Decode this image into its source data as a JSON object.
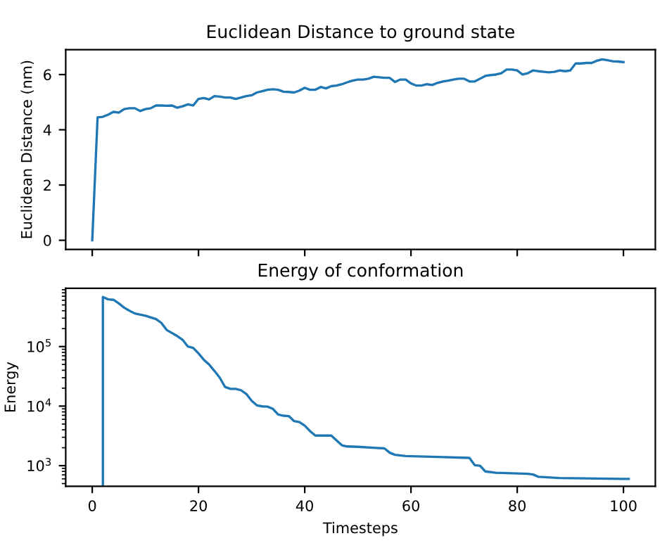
{
  "chart_data": [
    {
      "type": "line",
      "title": "Euclidean Distance to ground state",
      "ylabel": "Euclidean Distance (nm)",
      "xlim": [
        -5,
        106
      ],
      "xticks": [
        0,
        20,
        40,
        60,
        80,
        100
      ],
      "ylim": [
        -0.33,
        6.9
      ],
      "yticks": [
        0,
        2,
        4,
        6
      ],
      "tick_labels": "y",
      "grid": false,
      "legend": false,
      "series": [
        {
          "color": "#1f77b4",
          "x": [
            0,
            1,
            2,
            3,
            4,
            5,
            6,
            7,
            8,
            9,
            10,
            11,
            12,
            13,
            14,
            15,
            16,
            17,
            18,
            19,
            20,
            21,
            22,
            23,
            24,
            25,
            26,
            27,
            28,
            29,
            30,
            31,
            32,
            33,
            34,
            35,
            36,
            37,
            38,
            39,
            40,
            41,
            42,
            43,
            44,
            45,
            46,
            47,
            48,
            49,
            50,
            51,
            52,
            53,
            54,
            55,
            56,
            57,
            58,
            59,
            60,
            61,
            62,
            63,
            64,
            65,
            66,
            67,
            68,
            69,
            70,
            71,
            72,
            73,
            74,
            75,
            76,
            77,
            78,
            79,
            80,
            81,
            82,
            83,
            84,
            85,
            86,
            87,
            88,
            89,
            90,
            91,
            92,
            93,
            94,
            95,
            96,
            97,
            98,
            99,
            100
          ],
          "values": [
            0,
            4.45,
            4.47,
            4.55,
            4.65,
            4.62,
            4.75,
            4.78,
            4.78,
            4.68,
            4.75,
            4.78,
            4.88,
            4.88,
            4.87,
            4.88,
            4.8,
            4.85,
            4.92,
            4.88,
            5.12,
            5.15,
            5.1,
            5.22,
            5.2,
            5.17,
            5.17,
            5.12,
            5.17,
            5.22,
            5.25,
            5.35,
            5.4,
            5.45,
            5.47,
            5.45,
            5.38,
            5.37,
            5.35,
            5.42,
            5.52,
            5.45,
            5.45,
            5.55,
            5.5,
            5.58,
            5.6,
            5.65,
            5.72,
            5.78,
            5.82,
            5.82,
            5.85,
            5.92,
            5.9,
            5.88,
            5.88,
            5.73,
            5.82,
            5.82,
            5.68,
            5.6,
            5.6,
            5.65,
            5.62,
            5.7,
            5.75,
            5.78,
            5.82,
            5.85,
            5.85,
            5.75,
            5.75,
            5.85,
            5.95,
            5.98,
            6.0,
            6.05,
            6.18,
            6.18,
            6.15,
            6.0,
            6.05,
            6.15,
            6.12,
            6.1,
            6.08,
            6.1,
            6.15,
            6.12,
            6.15,
            6.4,
            6.4,
            6.42,
            6.42,
            6.5,
            6.55,
            6.52,
            6.48,
            6.47,
            6.45
          ]
        }
      ]
    },
    {
      "type": "line",
      "title": "Energy of conformation",
      "xlabel": "Timesteps",
      "ylabel": "Energy",
      "log": "y",
      "xlim": [
        -5,
        106
      ],
      "xticks": [
        0,
        20,
        40,
        60,
        80,
        100
      ],
      "ylim": [
        450,
        950000
      ],
      "yticks": [
        {
          "value": 1000,
          "label": "10$^{3}$"
        },
        {
          "value": 10000,
          "label": "10$^{4}$"
        },
        {
          "value": 100000,
          "label": "10$^{5}$"
        }
      ],
      "grid": false,
      "legend": false,
      "series": [
        {
          "color": "#1f77b4",
          "x": [
            2,
            2,
            3,
            4,
            5,
            6,
            7,
            8,
            10,
            12,
            13,
            14,
            16,
            17,
            18,
            19,
            20,
            21,
            22,
            23,
            24,
            25,
            26,
            27,
            28,
            29,
            30,
            31,
            32,
            33,
            34,
            35,
            36,
            37,
            38,
            39,
            40,
            41,
            42,
            45,
            46,
            47,
            48,
            50,
            53,
            55,
            56,
            57,
            59,
            65,
            71,
            72,
            73,
            74,
            76,
            82,
            83,
            84,
            88,
            100,
            101
          ],
          "values": [
            450,
            680000,
            620000,
            610000,
            530000,
            450000,
            400000,
            360000,
            330000,
            290000,
            250000,
            190000,
            150000,
            130000,
            100000,
            95000,
            77000,
            60000,
            50000,
            39000,
            30000,
            21000,
            19500,
            19500,
            18500,
            16000,
            12300,
            10300,
            9900,
            9800,
            9000,
            7200,
            6900,
            6800,
            5600,
            5400,
            4700,
            3800,
            3200,
            3200,
            2650,
            2200,
            2100,
            2070,
            2000,
            1950,
            1650,
            1520,
            1450,
            1400,
            1350,
            1020,
            1000,
            800,
            760,
            730,
            710,
            650,
            620,
            600,
            600
          ]
        }
      ]
    }
  ]
}
